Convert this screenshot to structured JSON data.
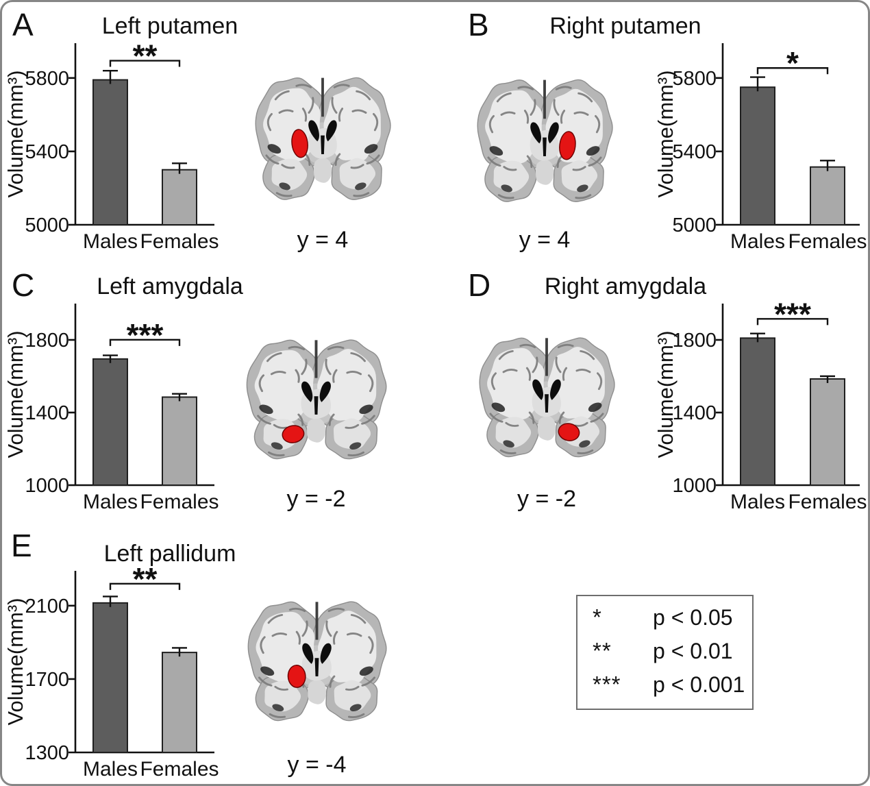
{
  "figure": {
    "frame_color": "#868686",
    "background": "#ffffff"
  },
  "colors": {
    "males_bar": "#5d5d5d",
    "females_bar": "#a9a9a9",
    "bar_outline": "#1f1f1f",
    "axis": "#111111",
    "highlight_red": "#e41414",
    "brain_cortex": "#b6b6b6",
    "brain_white_matter": "#eaeaea",
    "ventricle_black": "#0d0d0d"
  },
  "legend": {
    "rows": [
      {
        "symbol": "*",
        "label": "p < 0.05"
      },
      {
        "symbol": "**",
        "label": "p < 0.01"
      },
      {
        "symbol": "***",
        "label": "p < 0.001"
      }
    ]
  },
  "chart_data": [
    {
      "panel": "A",
      "type": "bar",
      "title": "Left putamen",
      "ylabel": "Volume(mm³)",
      "categories": [
        "Males",
        "Females"
      ],
      "values": [
        5790,
        5300
      ],
      "errors": [
        50,
        35
      ],
      "yticks": [
        5000,
        5400,
        5800
      ],
      "ylim": [
        5000,
        5990
      ],
      "significance": "**",
      "slice_label": "y = 4",
      "layout": "chart-left",
      "highlight": "left-putamen",
      "grid": false
    },
    {
      "panel": "B",
      "type": "bar",
      "title": "Right putamen",
      "ylabel": "Volume(mm³)",
      "categories": [
        "Males",
        "Females"
      ],
      "values": [
        5750,
        5315
      ],
      "errors": [
        55,
        35
      ],
      "yticks": [
        5000,
        5400,
        5800
      ],
      "ylim": [
        5000,
        5990
      ],
      "significance": "*",
      "slice_label": "y = 4",
      "layout": "chart-right",
      "highlight": "right-putamen",
      "grid": false
    },
    {
      "panel": "C",
      "type": "bar",
      "title": "Left amygdala",
      "ylabel": "Volume(mm³)",
      "categories": [
        "Males",
        "Females"
      ],
      "values": [
        1695,
        1485
      ],
      "errors": [
        20,
        18
      ],
      "yticks": [
        1000,
        1400,
        1800
      ],
      "ylim": [
        1000,
        2000
      ],
      "significance": "***",
      "slice_label": "y = -2",
      "layout": "chart-left",
      "highlight": "left-amygdala",
      "grid": false
    },
    {
      "panel": "D",
      "type": "bar",
      "title": "Right amygdala",
      "ylabel": "Volume(mm³)",
      "categories": [
        "Males",
        "Females"
      ],
      "values": [
        1810,
        1585
      ],
      "errors": [
        25,
        15
      ],
      "yticks": [
        1000,
        1400,
        1800
      ],
      "ylim": [
        1000,
        2000
      ],
      "significance": "***",
      "slice_label": "y = -2",
      "layout": "chart-right",
      "highlight": "right-amygdala",
      "grid": false
    },
    {
      "panel": "E",
      "type": "bar",
      "title": "Left pallidum",
      "ylabel": "Volume(mm³)",
      "categories": [
        "Males",
        "Females"
      ],
      "values": [
        2115,
        1845
      ],
      "errors": [
        35,
        25
      ],
      "yticks": [
        1300,
        1700,
        2100
      ],
      "ylim": [
        1300,
        2290
      ],
      "significance": "**",
      "slice_label": "y = -4",
      "layout": "chart-left",
      "highlight": "left-pallidum",
      "grid": false
    }
  ]
}
